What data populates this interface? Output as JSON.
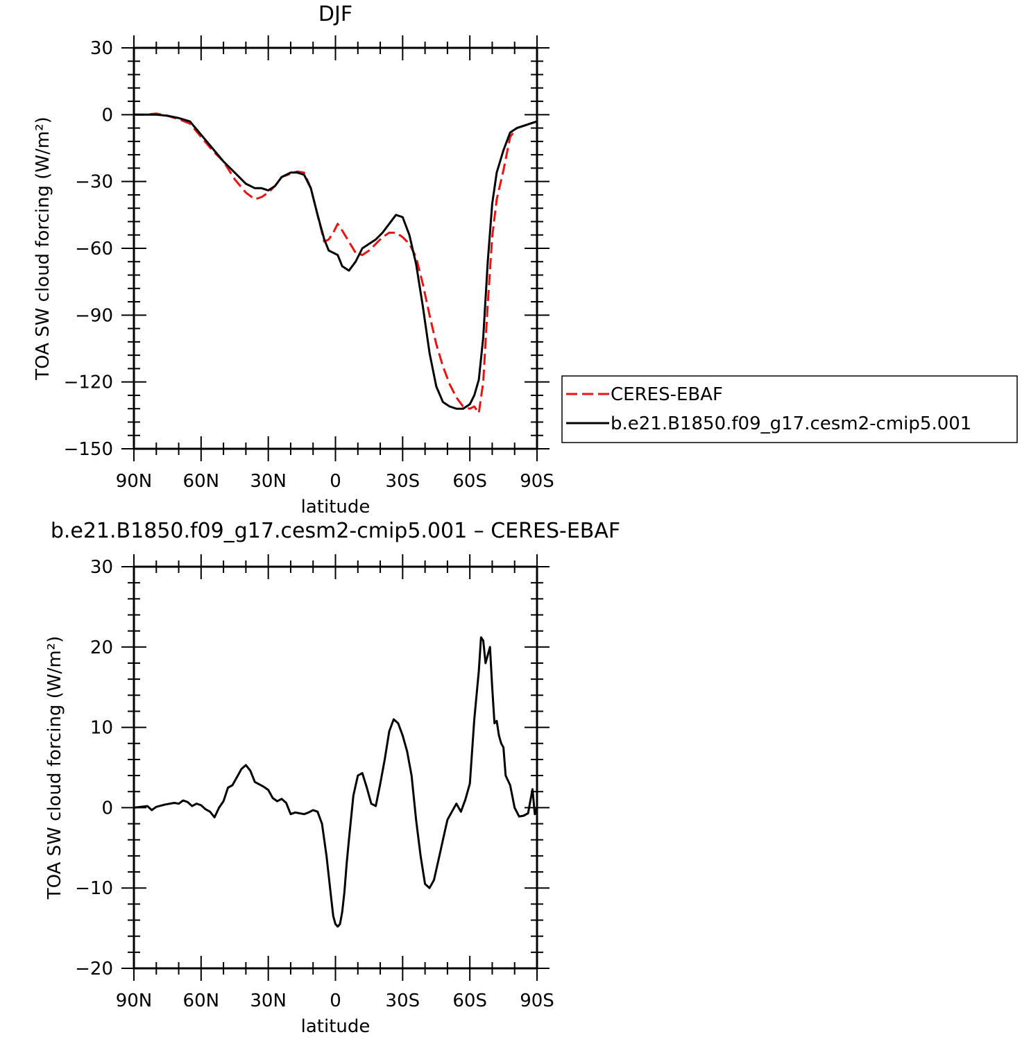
{
  "chart_data": [
    {
      "type": "line",
      "title": "DJF",
      "xlabel": "latitude",
      "ylabel": "TOA SW cloud forcing (W/m²)",
      "xlim": [
        90,
        -90
      ],
      "ylim": [
        -150,
        30
      ],
      "yticks": [
        30,
        0,
        -30,
        -60,
        -90,
        -120,
        -150
      ],
      "xticks": [
        90,
        60,
        30,
        0,
        -30,
        -60,
        -90
      ],
      "xtick_labels": [
        "90N",
        "60N",
        "30N",
        "0",
        "30S",
        "60S",
        "90S"
      ],
      "legend_position": "right",
      "series": [
        {
          "name": "CERES-EBAF",
          "color": "#ee1111",
          "style": "dashed",
          "x": [
            90,
            85,
            80,
            75,
            70,
            65,
            60,
            55,
            50,
            45,
            40,
            36,
            33,
            30,
            27,
            24,
            20,
            17,
            14,
            11,
            8,
            5,
            3,
            1,
            -1,
            -3,
            -6,
            -9,
            -12,
            -15,
            -18,
            -21,
            -24,
            -27,
            -30,
            -33,
            -36,
            -39,
            -42,
            -45,
            -48,
            -51,
            -54,
            -57,
            -60,
            -62,
            -64,
            -66,
            -68,
            -70,
            -72,
            -75,
            -78,
            -81,
            -84,
            -87,
            -90
          ],
          "y": [
            0,
            0,
            0.5,
            -0.5,
            -2,
            -4,
            -10,
            -16,
            -21,
            -29,
            -35,
            -38,
            -37,
            -35,
            -32,
            -28,
            -26.5,
            -25.5,
            -26,
            -33,
            -45,
            -57,
            -56,
            -53,
            -49,
            -52,
            -57,
            -62,
            -63,
            -61,
            -58,
            -55,
            -53,
            -53,
            -55,
            -58,
            -64,
            -76,
            -90,
            -103,
            -113,
            -121,
            -127,
            -131,
            -132,
            -131,
            -134,
            -120,
            -85,
            -55,
            -38,
            -25,
            -10,
            -6,
            -5,
            -4,
            -3
          ]
        },
        {
          "name": "b.e21.B1850.f09_g17.cesm2-cmip5.001",
          "color": "#000000",
          "style": "solid",
          "x": [
            90,
            85,
            80,
            75,
            70,
            65,
            60,
            55,
            50,
            45,
            40,
            36,
            33,
            30,
            27,
            24,
            20,
            17,
            14,
            11,
            8,
            5,
            3,
            1,
            -1,
            -3,
            -6,
            -9,
            -12,
            -15,
            -18,
            -21,
            -24,
            -27,
            -30,
            -33,
            -36,
            -39,
            -42,
            -45,
            -48,
            -51,
            -54,
            -57,
            -60,
            -62,
            -64,
            -66,
            -68,
            -70,
            -72,
            -75,
            -78,
            -81,
            -84,
            -87,
            -90
          ],
          "y": [
            0,
            0,
            0,
            -0.5,
            -1.5,
            -3,
            -9,
            -15,
            -21,
            -26,
            -31,
            -33,
            -33,
            -34,
            -32,
            -28,
            -26,
            -26,
            -27,
            -33,
            -45,
            -56,
            -61,
            -62,
            -63,
            -68,
            -70,
            -66,
            -60,
            -58,
            -56,
            -53,
            -49,
            -45,
            -46,
            -54,
            -67,
            -86,
            -107,
            -122,
            -129,
            -131,
            -132,
            -132,
            -130,
            -126,
            -119,
            -100,
            -66,
            -40,
            -26,
            -16,
            -8,
            -6,
            -5,
            -4,
            -3
          ]
        }
      ]
    },
    {
      "type": "line",
      "title": "b.e21.B1850.f09_g17.cesm2-cmip5.001 – CERES-EBAF",
      "xlabel": "latitude",
      "ylabel": "TOA SW cloud forcing (W/m²)",
      "xlim": [
        90,
        -90
      ],
      "ylim": [
        -20,
        30
      ],
      "yticks": [
        30,
        20,
        10,
        0,
        -10,
        -20
      ],
      "xticks": [
        90,
        60,
        30,
        0,
        -30,
        -60,
        -90
      ],
      "xtick_labels": [
        "90N",
        "60N",
        "30N",
        "0",
        "30S",
        "60S",
        "90S"
      ],
      "series": [
        {
          "color": "#000000",
          "style": "solid",
          "x": [
            90,
            84,
            82,
            80,
            76,
            72,
            70,
            68,
            66,
            64,
            62,
            60,
            58,
            56,
            54,
            52,
            50,
            48,
            46,
            44,
            42,
            40,
            38,
            36,
            34,
            32,
            30,
            28,
            26,
            24,
            22,
            20,
            18,
            16,
            14,
            12,
            10,
            8,
            6,
            4,
            3,
            2,
            1,
            0,
            -1,
            -2,
            -3,
            -4,
            -5,
            -6,
            -8,
            -10,
            -12,
            -14,
            -16,
            -18,
            -20,
            -22,
            -24,
            -26,
            -28,
            -30,
            -32,
            -34,
            -36,
            -38,
            -40,
            -42,
            -44,
            -46,
            -48,
            -50,
            -52,
            -54,
            -56,
            -58,
            -60,
            -62,
            -64,
            -65,
            -66,
            -67,
            -68,
            -69,
            -70,
            -71,
            -72,
            -73,
            -74,
            -75,
            -76,
            -78,
            -80,
            -82,
            -84,
            -86,
            -88,
            -89,
            -90
          ],
          "y": [
            0,
            0.2,
            -0.3,
            0.1,
            0.4,
            0.6,
            0.5,
            0.9,
            0.7,
            0.2,
            0.5,
            0.3,
            -0.2,
            -0.5,
            -1.2,
            0,
            0.8,
            2.5,
            2.8,
            3.8,
            4.8,
            5.3,
            4.6,
            3.2,
            2.9,
            2.6,
            2.2,
            1.2,
            0.8,
            1.1,
            0.6,
            -0.8,
            -0.6,
            -0.7,
            -0.8,
            -0.6,
            -0.3,
            -0.5,
            -2,
            -6,
            -8.5,
            -11,
            -13.5,
            -14.5,
            -14.8,
            -14.5,
            -13,
            -10.5,
            -7,
            -4,
            1.5,
            4,
            4.3,
            2.5,
            0.5,
            0.2,
            3,
            6,
            9.5,
            11,
            10.5,
            9,
            7,
            4,
            -1.5,
            -6,
            -9.5,
            -10,
            -9,
            -6.5,
            -4,
            -1.5,
            -0.5,
            0.5,
            -0.5,
            1,
            3,
            11,
            17,
            21.2,
            20.8,
            18,
            19,
            20,
            15,
            10.5,
            10.8,
            9,
            8,
            7.5,
            4,
            2.8,
            0,
            -1.1,
            -1,
            -0.7,
            2.3,
            -0.8,
            0
          ]
        }
      ]
    }
  ]
}
